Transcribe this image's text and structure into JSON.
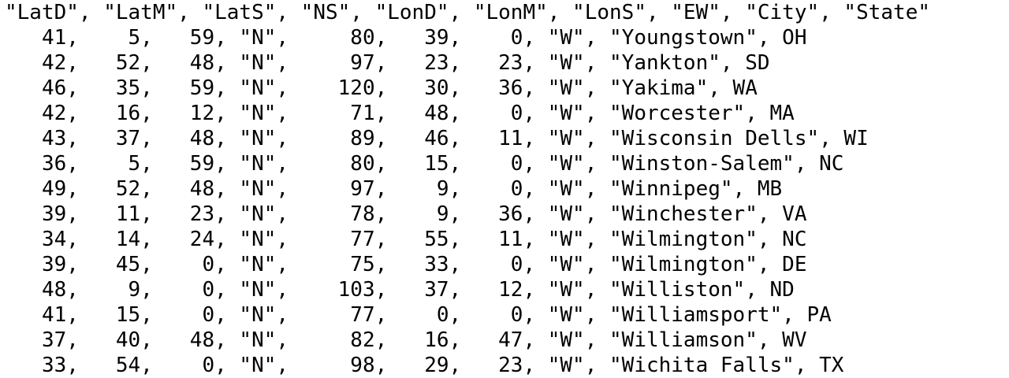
{
  "file": {
    "lines": [
      "\"LatD\", \"LatM\", \"LatS\", \"NS\", \"LonD\", \"LonM\", \"LonS\", \"EW\", \"City\", \"State\"",
      "   41,    5,   59, \"N\",     80,   39,    0, \"W\", \"Youngstown\", OH",
      "   42,   52,   48, \"N\",     97,   23,   23, \"W\", \"Yankton\", SD",
      "   46,   35,   59, \"N\",    120,   30,   36, \"W\", \"Yakima\", WA",
      "   42,   16,   12, \"N\",     71,   48,    0, \"W\", \"Worcester\", MA",
      "   43,   37,   48, \"N\",     89,   46,   11, \"W\", \"Wisconsin Dells\", WI",
      "   36,    5,   59, \"N\",     80,   15,    0, \"W\", \"Winston-Salem\", NC",
      "   49,   52,   48, \"N\",     97,    9,    0, \"W\", \"Winnipeg\", MB",
      "   39,   11,   23, \"N\",     78,    9,   36, \"W\", \"Winchester\", VA",
      "   34,   14,   24, \"N\",     77,   55,   11, \"W\", \"Wilmington\", NC",
      "   39,   45,    0, \"N\",     75,   33,    0, \"W\", \"Wilmington\", DE",
      "   48,    9,    0, \"N\",    103,   37,   12, \"W\", \"Williston\", ND",
      "   41,   15,    0, \"N\",     77,    0,    0, \"W\", \"Williamsport\", PA",
      "   37,   40,   48, \"N\",     82,   16,   47, \"W\", \"Williamson\", WV",
      "   33,   54,    0, \"N\",     98,   29,   23, \"W\", \"Wichita Falls\", TX"
    ]
  }
}
